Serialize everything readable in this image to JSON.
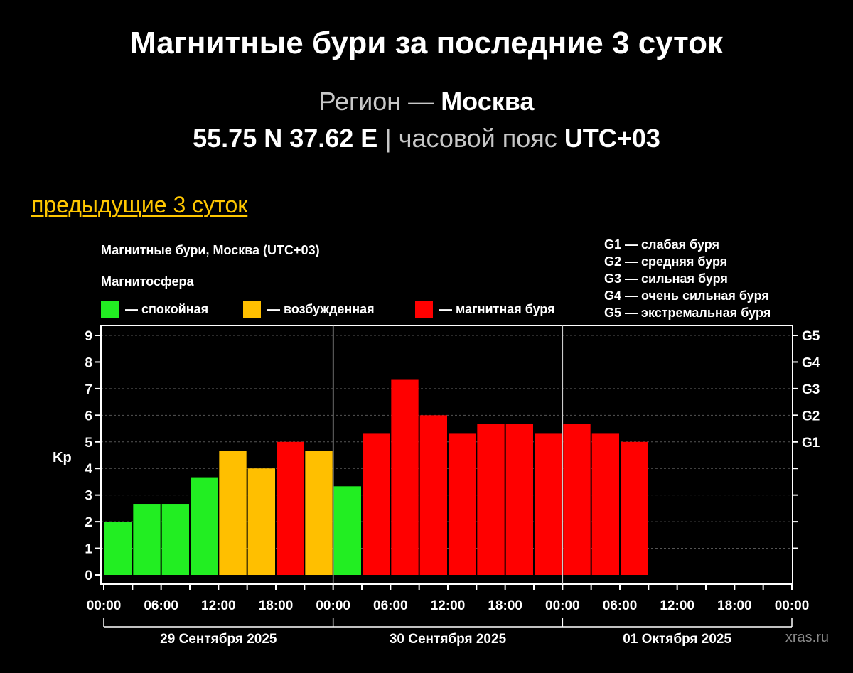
{
  "page": {
    "title": "Магнитные бури за последние 3 суток",
    "region_prefix": "Регион —",
    "region_name": "Москва",
    "coordinates": "55.75 N 37.62 E",
    "separator": "|",
    "timezone_label": "часовой пояс",
    "timezone_value": "UTC+03",
    "prev_link": "предыдущие 3 суток",
    "site": "xras.ru"
  },
  "legend": {
    "chart_title": "Магнитные бури, Москва (UTC+03)",
    "section_label": "Магнитосфера",
    "items": [
      {
        "label": "— спокойная",
        "color": "#22ee22"
      },
      {
        "label": "— возбужденная",
        "color": "#ffbf00"
      },
      {
        "label": "— магнитная буря",
        "color": "#ff0000"
      }
    ],
    "g_scale": [
      "G1 — слабая буря",
      "G2 — средняя буря",
      "G3 — сильная буря",
      "G4 — очень сильная буря",
      "G5 — экстремальная буря"
    ]
  },
  "chart_data": {
    "type": "bar",
    "ylabel": "Kp",
    "ylim": [
      0,
      9
    ],
    "yticks": [
      "0",
      "1",
      "2",
      "3",
      "4",
      "5",
      "6",
      "7",
      "8",
      "9"
    ],
    "right_ticks": [
      {
        "kp": 5,
        "label": "G1"
      },
      {
        "kp": 6,
        "label": "G2"
      },
      {
        "kp": 7,
        "label": "G3"
      },
      {
        "kp": 8,
        "label": "G4"
      },
      {
        "kp": 9,
        "label": "G5"
      }
    ],
    "xticks": [
      "00:00",
      "06:00",
      "12:00",
      "18:00",
      "00:00",
      "06:00",
      "12:00",
      "18:00",
      "00:00",
      "06:00",
      "12:00",
      "18:00",
      "00:00"
    ],
    "days": [
      "29 Сентября 2025",
      "30 Сентября 2025",
      "01 Октября 2025"
    ],
    "grid": true,
    "slots_total": 24,
    "values": [
      2.0,
      2.67,
      2.67,
      3.67,
      4.67,
      4.0,
      5.0,
      4.67,
      3.33,
      5.33,
      7.33,
      6.0,
      5.33,
      5.67,
      5.67,
      5.33,
      5.67,
      5.33,
      5.0
    ],
    "colors": {
      "quiet": "#22ee22",
      "active": "#ffbf00",
      "storm": "#ff0000"
    }
  }
}
